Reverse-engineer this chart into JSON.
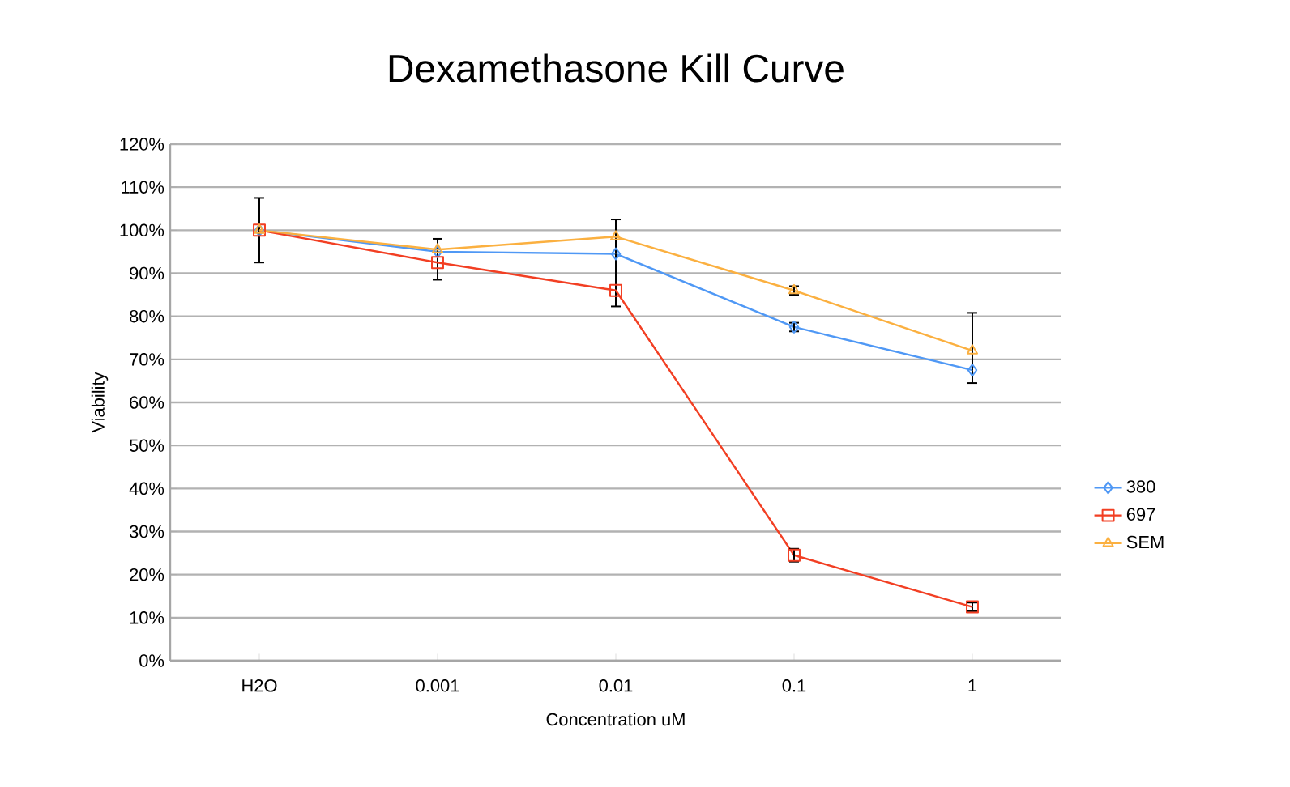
{
  "chart_data": {
    "type": "line",
    "title": "Dexamethasone Kill Curve",
    "xlabel": "Concentration uM",
    "ylabel": "Viability",
    "categories": [
      "H2O",
      "0.001",
      "0.01",
      "0.1",
      "1"
    ],
    "series": [
      {
        "name": "380",
        "color": "#4f98f5",
        "marker": "diamond",
        "values": [
          100,
          95,
          94.5,
          77.5,
          67.5
        ],
        "errors": [
          [
            92.5,
            107.5
          ],
          [
            88.5,
            98
          ],
          [
            82.3,
            102.5
          ],
          1,
          [
            64.5,
            80.8
          ]
        ]
      },
      {
        "name": "697",
        "color": "#f23f23",
        "marker": "square",
        "values": [
          100,
          92.5,
          86,
          24.5,
          12.5
        ],
        "errors": [
          null,
          null,
          null,
          1.5,
          1
        ]
      },
      {
        "name": "SEM",
        "color": "#fbb040",
        "marker": "triangle",
        "values": [
          100,
          95.5,
          98.5,
          86,
          72
        ],
        "errors": [
          null,
          null,
          null,
          1,
          null
        ]
      }
    ],
    "ylim": [
      0,
      120
    ],
    "yticks": [
      {
        "value": 0,
        "label": "0%"
      },
      {
        "value": 10,
        "label": "10%"
      },
      {
        "value": 20,
        "label": "20%"
      },
      {
        "value": 30,
        "label": "30%"
      },
      {
        "value": 40,
        "label": "40%"
      },
      {
        "value": 50,
        "label": "50%"
      },
      {
        "value": 60,
        "label": "60%"
      },
      {
        "value": 70,
        "label": "70%"
      },
      {
        "value": 80,
        "label": "80%"
      },
      {
        "value": 90,
        "label": "90%"
      },
      {
        "value": 100,
        "label": "100%"
      },
      {
        "value": 110,
        "label": "110%"
      },
      {
        "value": 120,
        "label": "120%"
      }
    ],
    "grid": "y",
    "legend": "right",
    "line_style": "solid"
  }
}
